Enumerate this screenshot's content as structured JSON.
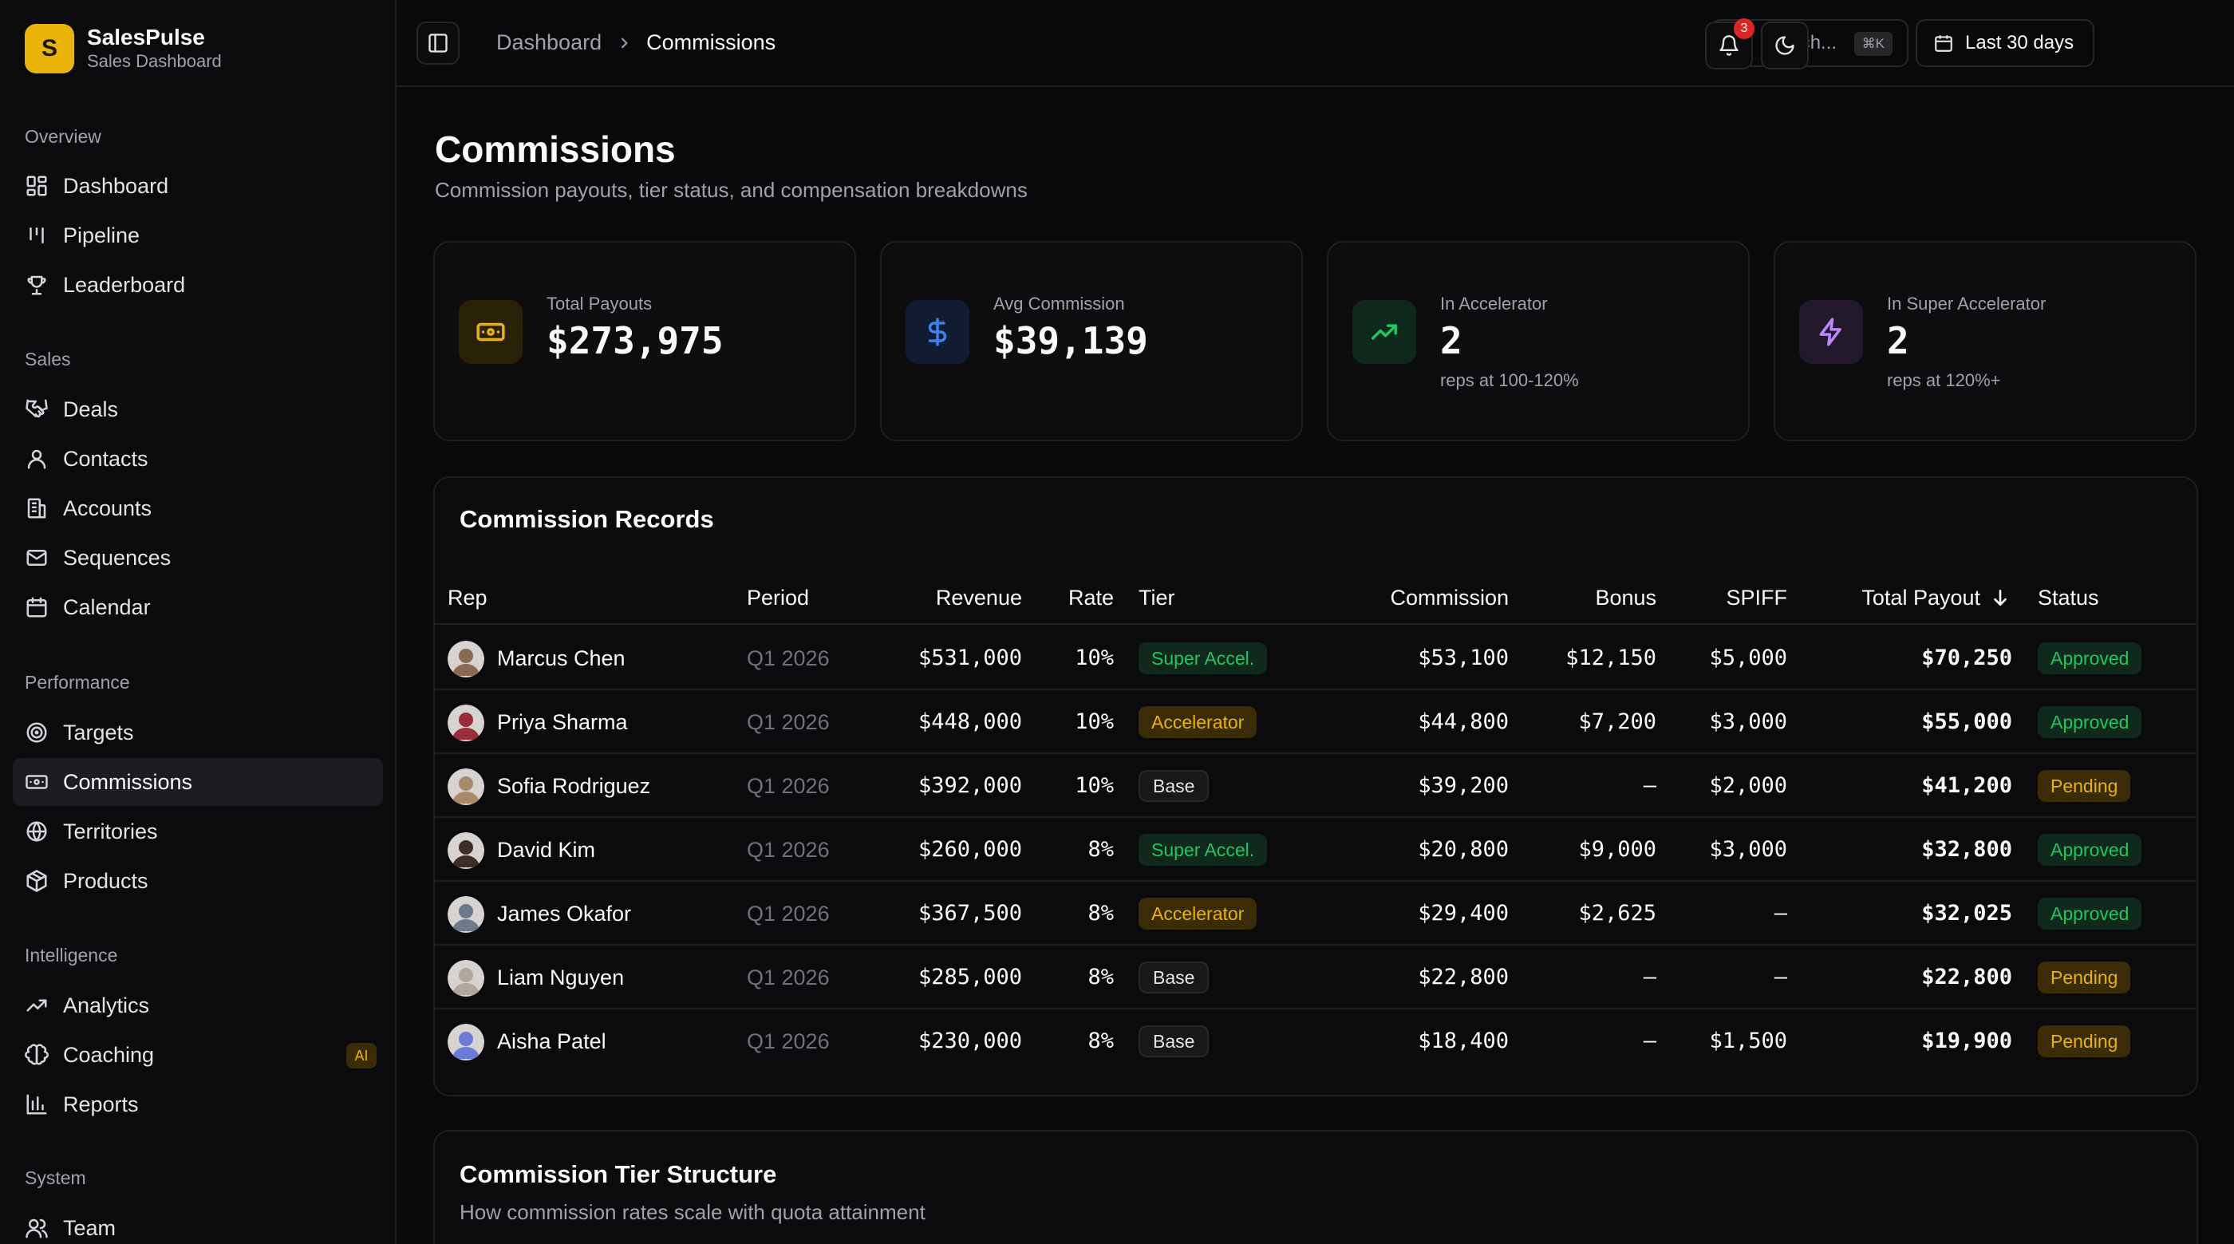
{
  "brand": {
    "initial": "S",
    "name": "SalesPulse",
    "subtitle": "Sales Dashboard"
  },
  "sidebar": {
    "sections": [
      {
        "title": "Overview",
        "items": [
          {
            "label": "Dashboard",
            "icon": "layout-grid-icon"
          },
          {
            "label": "Pipeline",
            "icon": "kanban-icon"
          },
          {
            "label": "Leaderboard",
            "icon": "trophy-icon"
          }
        ]
      },
      {
        "title": "Sales",
        "items": [
          {
            "label": "Deals",
            "icon": "handshake-icon"
          },
          {
            "label": "Contacts",
            "icon": "user-icon"
          },
          {
            "label": "Accounts",
            "icon": "building-icon"
          },
          {
            "label": "Sequences",
            "icon": "mail-icon"
          },
          {
            "label": "Calendar",
            "icon": "calendar-icon"
          }
        ]
      },
      {
        "title": "Performance",
        "items": [
          {
            "label": "Targets",
            "icon": "target-icon"
          },
          {
            "label": "Commissions",
            "icon": "banknote-icon",
            "active": true
          },
          {
            "label": "Territories",
            "icon": "globe-icon"
          },
          {
            "label": "Products",
            "icon": "package-icon"
          }
        ]
      },
      {
        "title": "Intelligence",
        "items": [
          {
            "label": "Analytics",
            "icon": "trending-up-icon"
          },
          {
            "label": "Coaching",
            "icon": "brain-icon",
            "badge": "AI"
          },
          {
            "label": "Reports",
            "icon": "bar-chart-icon"
          }
        ]
      },
      {
        "title": "System",
        "items": [
          {
            "label": "Team",
            "icon": "users-icon"
          }
        ]
      }
    ]
  },
  "header": {
    "breadcrumb": [
      "Dashboard",
      "Commissions"
    ],
    "search_placeholder": "Search...",
    "search_shortcut": "⌘K",
    "date_range": "Last 30 days",
    "notification_count": "3"
  },
  "page": {
    "title": "Commissions",
    "subtitle": "Commission payouts, tier status, and compensation breakdowns"
  },
  "stats": [
    {
      "label": "Total Payouts",
      "value": "$273,975",
      "note": "",
      "icon": "banknote-icon",
      "color": "#eab308"
    },
    {
      "label": "Avg Commission",
      "value": "$39,139",
      "note": "",
      "icon": "dollar-icon",
      "color": "#3b82f6"
    },
    {
      "label": "In Accelerator",
      "value": "2",
      "note": "reps at 100-120%",
      "icon": "trending-up-icon",
      "color": "#22c55e"
    },
    {
      "label": "In Super Accelerator",
      "value": "2",
      "note": "reps at 120%+",
      "icon": "zap-icon",
      "color": "#c084fc"
    }
  ],
  "records": {
    "title": "Commission Records",
    "columns": {
      "rep": "Rep",
      "period": "Period",
      "revenue": "Revenue",
      "rate": "Rate",
      "tier": "Tier",
      "commission": "Commission",
      "bonus": "Bonus",
      "spiff": "SPIFF",
      "total": "Total Payout",
      "status": "Status"
    },
    "rows": [
      {
        "rep": "Marcus Chen",
        "period": "Q1 2026",
        "revenue": "$531,000",
        "rate": "10%",
        "tier": "Super Accel.",
        "commission": "$53,100",
        "bonus": "$12,150",
        "spiff": "$5,000",
        "total": "$70,250",
        "status": "Approved"
      },
      {
        "rep": "Priya Sharma",
        "period": "Q1 2026",
        "revenue": "$448,000",
        "rate": "10%",
        "tier": "Accelerator",
        "commission": "$44,800",
        "bonus": "$7,200",
        "spiff": "$3,000",
        "total": "$55,000",
        "status": "Approved"
      },
      {
        "rep": "Sofia Rodriguez",
        "period": "Q1 2026",
        "revenue": "$392,000",
        "rate": "10%",
        "tier": "Base",
        "commission": "$39,200",
        "bonus": "—",
        "spiff": "$2,000",
        "total": "$41,200",
        "status": "Pending"
      },
      {
        "rep": "David Kim",
        "period": "Q1 2026",
        "revenue": "$260,000",
        "rate": "8%",
        "tier": "Super Accel.",
        "commission": "$20,800",
        "bonus": "$9,000",
        "spiff": "$3,000",
        "total": "$32,800",
        "status": "Approved"
      },
      {
        "rep": "James Okafor",
        "period": "Q1 2026",
        "revenue": "$367,500",
        "rate": "8%",
        "tier": "Accelerator",
        "commission": "$29,400",
        "bonus": "$2,625",
        "spiff": "—",
        "total": "$32,025",
        "status": "Approved"
      },
      {
        "rep": "Liam Nguyen",
        "period": "Q1 2026",
        "revenue": "$285,000",
        "rate": "8%",
        "tier": "Base",
        "commission": "$22,800",
        "bonus": "—",
        "spiff": "—",
        "total": "$22,800",
        "status": "Pending"
      },
      {
        "rep": "Aisha Patel",
        "period": "Q1 2026",
        "revenue": "$230,000",
        "rate": "8%",
        "tier": "Base",
        "commission": "$18,400",
        "bonus": "—",
        "spiff": "$1,500",
        "total": "$19,900",
        "status": "Pending"
      }
    ]
  },
  "tier_structure": {
    "title": "Commission Tier Structure",
    "subtitle": "How commission rates scale with quota attainment"
  }
}
